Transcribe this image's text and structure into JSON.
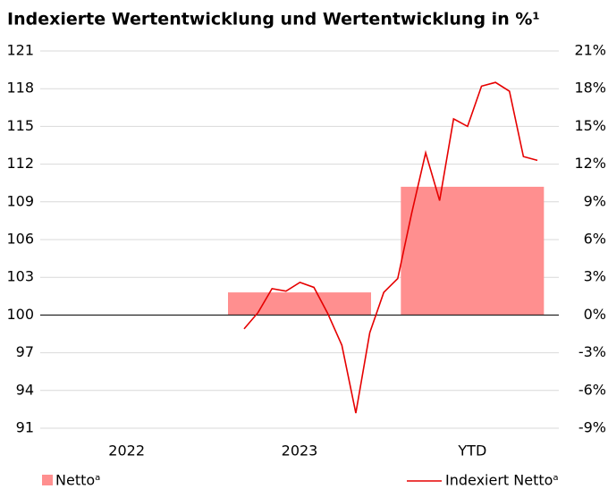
{
  "chart_data": {
    "type": "bar",
    "title": "Indexierte Wertentwicklung und Wertentwicklung in %¹",
    "categories": [
      "2022",
      "2023",
      "YTD"
    ],
    "series": [
      {
        "name": "Nettoᵃ",
        "color": "#ff8f8f",
        "axis": "y2",
        "values": [
          null,
          1.8,
          10.2
        ]
      }
    ],
    "line_series": {
      "name": "Indexiert Nettoᵃ",
      "color": "#e60000",
      "type": "line",
      "axis": "y",
      "values": [
        98.9,
        100.2,
        102.1,
        101.9,
        102.6,
        102.2,
        100.1,
        97.6,
        92.2,
        98.6,
        101.8,
        102.9,
        108.1,
        112.9,
        109.1,
        115.6,
        115.0,
        118.2,
        118.5,
        117.8,
        112.6,
        112.3
      ]
    },
    "ylim": [
      91,
      121
    ],
    "yticks": [
      91,
      94,
      97,
      100,
      103,
      106,
      109,
      112,
      115,
      118,
      121
    ],
    "y2lim": [
      -9,
      21
    ],
    "y2ticks": [
      {
        "value": -9,
        "label": "-9%"
      },
      {
        "value": -6,
        "label": "-6%"
      },
      {
        "value": -3,
        "label": "-3%"
      },
      {
        "value": 0,
        "label": "0%"
      },
      {
        "value": 3,
        "label": "3%"
      },
      {
        "value": 6,
        "label": "6%"
      },
      {
        "value": 9,
        "label": "9%"
      },
      {
        "value": 12,
        "label": "12%"
      },
      {
        "value": 15,
        "label": "15%"
      },
      {
        "value": 18,
        "label": "18%"
      },
      {
        "value": 21,
        "label": "21%"
      }
    ],
    "baseline": 100,
    "grid": true,
    "legend": "bottom"
  }
}
